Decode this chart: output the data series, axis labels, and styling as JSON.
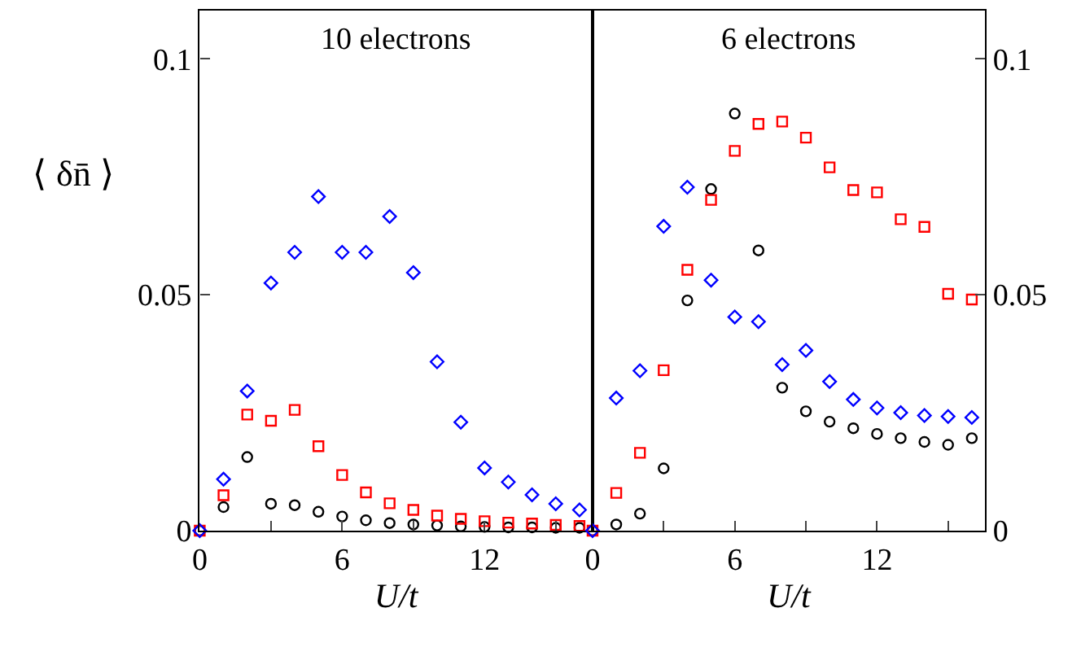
{
  "chart_data": [
    {
      "type": "scatter",
      "title": "10 electrons",
      "xlabel": "U/t",
      "ylabel": "⟨ δn̄ ⟩",
      "x": [
        0,
        1,
        2,
        3,
        4,
        5,
        6,
        7,
        8,
        9,
        10,
        11,
        12,
        13,
        14,
        15,
        16
      ],
      "series": [
        {
          "color": "#000000",
          "marker": "circle",
          "values": [
            0,
            0.005,
            0.0156,
            0.0057,
            0.0054,
            0.004,
            0.003,
            0.0022,
            0.0016,
            0.0013,
            0.0011,
            0.0009,
            0.0008,
            0.0007,
            0.0007,
            0.0006,
            0.0006
          ]
        },
        {
          "color": "#ff0000",
          "marker": "square",
          "values": [
            0,
            0.0075,
            0.0246,
            0.0233,
            0.0256,
            0.0179,
            0.0118,
            0.0081,
            0.0058,
            0.0044,
            0.0032,
            0.0025,
            0.002,
            0.0017,
            0.0015,
            0.0012,
            0.001
          ]
        },
        {
          "color": "#0000ff",
          "marker": "diamond",
          "values": [
            0,
            0.0109,
            0.0296,
            0.0525,
            0.059,
            0.0708,
            0.059,
            0.059,
            0.0666,
            0.0547,
            0.0358,
            0.023,
            0.0133,
            0.0103,
            0.0076,
            0.0057,
            0.0044
          ]
        }
      ],
      "xlim": [
        0,
        16.55
      ],
      "xticks": [
        0,
        {
          "value": 3,
          "label": null
        },
        6,
        {
          "value": 9,
          "label": null
        },
        12,
        {
          "value": 15,
          "label": null
        }
      ],
      "ylim": [
        0,
        0.1102
      ],
      "yticks": [
        0,
        0.05,
        0.1
      ],
      "grid": false
    },
    {
      "type": "scatter",
      "title": "6 electrons",
      "xlabel": "U/t",
      "x": [
        0,
        1,
        2,
        3,
        4,
        5,
        6,
        7,
        8,
        9,
        10,
        11,
        12,
        13,
        14,
        15,
        16
      ],
      "series": [
        {
          "color": "#000000",
          "marker": "circle",
          "values": [
            0,
            0.0013,
            0.0036,
            0.0132,
            0.0488,
            0.0724,
            0.0884,
            0.0594,
            0.0303,
            0.0253,
            0.0231,
            0.0217,
            0.0205,
            0.0196,
            0.0188,
            0.0182,
            0.0196
          ]
        },
        {
          "color": "#ff0000",
          "marker": "square",
          "values": [
            0,
            0.008,
            0.0165,
            0.034,
            0.0553,
            0.0701,
            0.0805,
            0.0862,
            0.0867,
            0.0833,
            0.077,
            0.0722,
            0.0717,
            0.066,
            0.0644,
            0.0502,
            0.049
          ]
        },
        {
          "color": "#0000ff",
          "marker": "diamond",
          "values": [
            0,
            0.0281,
            0.0339,
            0.0645,
            0.0728,
            0.0531,
            0.0453,
            0.0443,
            0.0352,
            0.0382,
            0.0316,
            0.0278,
            0.026,
            0.025,
            0.0244,
            0.0242,
            0.024
          ]
        }
      ],
      "xlim": [
        0,
        16.55
      ],
      "xticks": [
        0,
        {
          "value": 3,
          "label": null
        },
        6,
        {
          "value": 9,
          "label": null
        },
        12,
        {
          "value": 15,
          "label": null
        }
      ],
      "ylim": [
        0,
        0.1102
      ],
      "yticks": [
        0,
        0.05,
        0.1
      ],
      "grid": false
    }
  ]
}
